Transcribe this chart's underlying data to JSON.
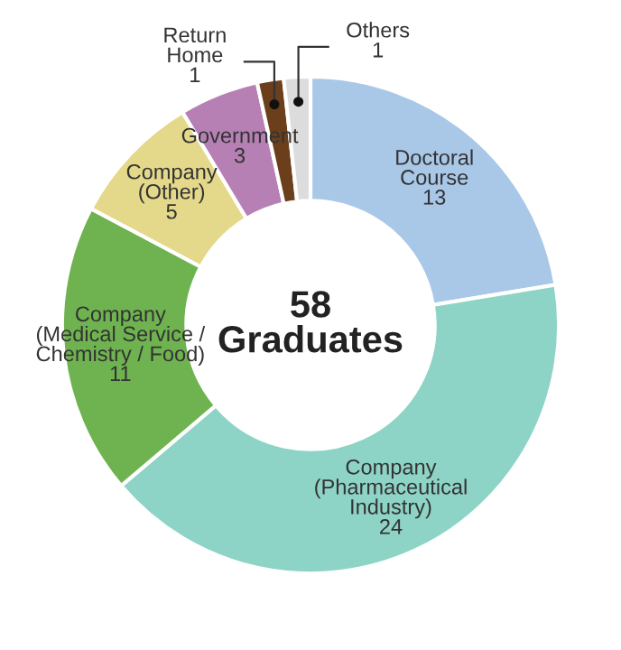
{
  "chart_data": {
    "type": "donut",
    "title": "58\nGraduates",
    "categories": [
      "Doctoral\nCourse",
      "Company\n(Pharmaceutical\nIndustry)",
      "Company\n(Medical Service /\nChemistry / Food)",
      "Company\n(Other)",
      "Government",
      "Return\nHome",
      "Others"
    ],
    "values": [
      13,
      24,
      11,
      5,
      3,
      1,
      1
    ],
    "colors": [
      "#a9c8e8",
      "#8ed4c6",
      "#6fb350",
      "#e4d88a",
      "#b780b5",
      "#6b3f1c",
      "#dcdcdc"
    ],
    "data_labels": true
  }
}
